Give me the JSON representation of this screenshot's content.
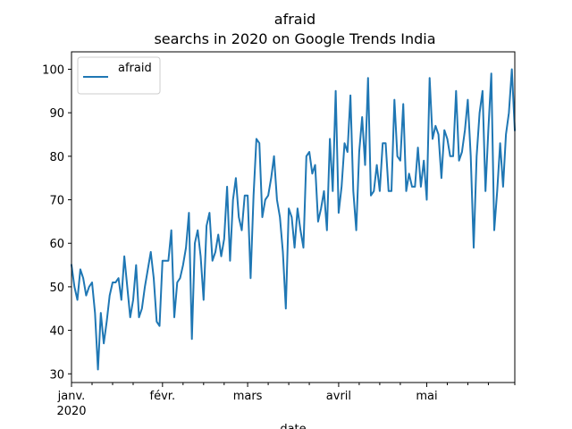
{
  "chart_data": {
    "type": "line",
    "title": "afraid",
    "subtitle": "searchs in 2020 on Google Trends India",
    "xlabel": "date",
    "ylabel": "",
    "xlim": [
      "2020-01-01",
      "2020-05-31"
    ],
    "ylim": [
      28,
      104
    ],
    "y_ticks": [
      30,
      40,
      50,
      60,
      70,
      80,
      90,
      100
    ],
    "x_ticks": [
      {
        "date": "2020-01-01",
        "label": "janv.",
        "sublabel": "2020"
      },
      {
        "date": "2020-02-01",
        "label": "févr.",
        "sublabel": ""
      },
      {
        "date": "2020-03-01",
        "label": "mars",
        "sublabel": ""
      },
      {
        "date": "2020-04-01",
        "label": "avril",
        "sublabel": ""
      },
      {
        "date": "2020-05-01",
        "label": "mai",
        "sublabel": ""
      }
    ],
    "x_minor_ticks": [
      "2020-01-08",
      "2020-01-15",
      "2020-01-22",
      "2020-02-08",
      "2020-02-15",
      "2020-02-22",
      "2020-03-08",
      "2020-03-15",
      "2020-03-22",
      "2020-04-08",
      "2020-04-15",
      "2020-04-22",
      "2020-05-08",
      "2020-05-15",
      "2020-05-22",
      "2020-05-31"
    ],
    "grid": false,
    "legend_position": "upper-left",
    "series": [
      {
        "name": "afraid",
        "color": "#1f77b4",
        "start_date": "2020-01-01",
        "values": [
          55,
          50,
          47,
          54,
          52,
          48,
          50,
          51,
          44,
          31,
          44,
          37,
          42,
          48,
          51,
          51,
          52,
          47,
          57,
          50,
          43,
          47,
          55,
          43,
          45,
          50,
          54,
          58,
          52,
          42,
          41,
          56,
          56,
          56,
          63,
          43,
          51,
          52,
          55,
          59,
          67,
          38,
          60,
          63,
          57,
          47,
          64,
          67,
          56,
          58,
          62,
          57,
          61,
          73,
          56,
          70,
          75,
          66,
          63,
          71,
          71,
          52,
          71,
          84,
          83,
          66,
          70,
          71,
          75,
          80,
          70,
          66,
          58,
          45,
          68,
          66,
          59,
          68,
          63,
          59,
          80,
          81,
          76,
          78,
          65,
          68,
          72,
          63,
          84,
          72,
          95,
          67,
          73,
          83,
          81,
          94,
          72,
          63,
          81,
          89,
          78,
          98,
          71,
          72,
          78,
          72,
          83,
          83,
          72,
          72,
          93,
          80,
          79,
          92,
          72,
          76,
          73,
          73,
          82,
          73,
          79,
          70,
          98,
          84,
          87,
          85,
          75,
          86,
          84,
          80,
          80,
          95,
          79,
          81,
          86,
          93,
          80,
          59,
          80,
          90,
          95,
          72,
          86,
          99,
          63,
          72,
          83,
          73,
          85,
          90,
          100,
          86
        ]
      }
    ]
  }
}
